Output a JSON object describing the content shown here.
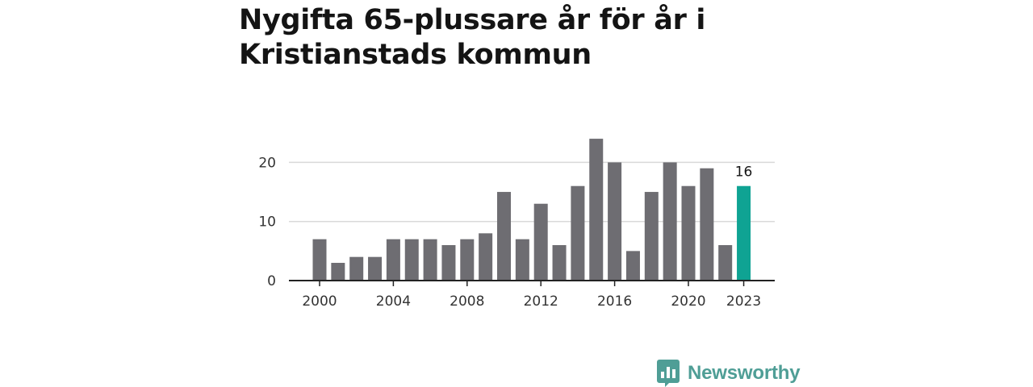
{
  "title": "Nygifta 65-plussare år för år i Kristianstads kommun",
  "brand": {
    "name": "Newsworthy",
    "color": "#4f9e96"
  },
  "colors": {
    "bar": "#6e6d72",
    "highlight": "#0fa393",
    "grid": "#d9d9d9",
    "axis": "#222222"
  },
  "chart_data": {
    "type": "bar",
    "title": "Nygifta 65-plussare år för år i Kristianstads kommun",
    "xlabel": "",
    "ylabel": "",
    "categories": [
      2000,
      2001,
      2002,
      2003,
      2004,
      2005,
      2006,
      2007,
      2008,
      2009,
      2010,
      2011,
      2012,
      2013,
      2014,
      2015,
      2016,
      2017,
      2018,
      2019,
      2020,
      2021,
      2022,
      2023
    ],
    "values": [
      7,
      3,
      4,
      4,
      7,
      7,
      7,
      6,
      7,
      8,
      15,
      7,
      13,
      6,
      16,
      24,
      20,
      5,
      15,
      20,
      16,
      19,
      6,
      16
    ],
    "highlight_index": 23,
    "data_label": "16",
    "ylim": [
      0,
      24
    ],
    "yticks": [
      0,
      10,
      20
    ],
    "xticks": [
      "2000",
      "2004",
      "2008",
      "2012",
      "2016",
      "2020",
      "2023"
    ],
    "grid": true
  }
}
